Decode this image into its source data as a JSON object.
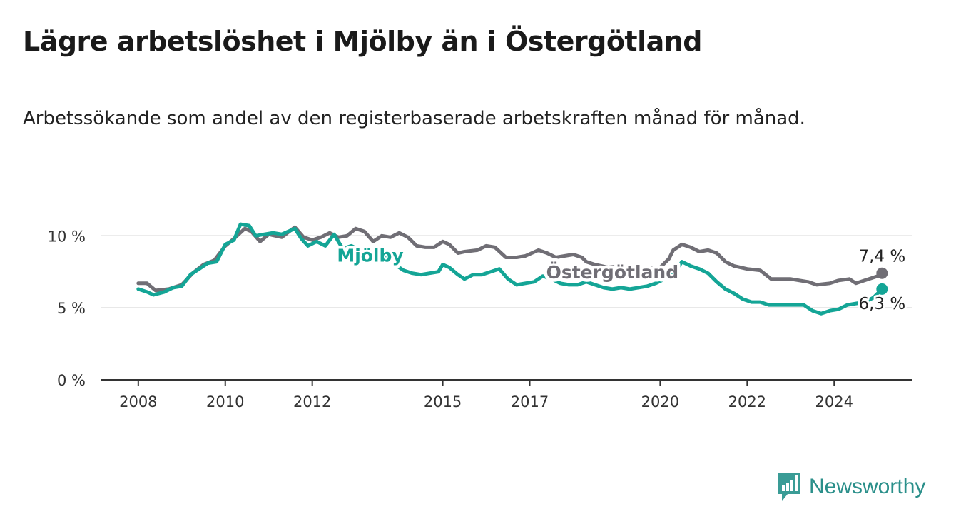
{
  "title": "Lägre arbetslöshet i Mjölby än i Östergötland",
  "subtitle": "Arbetssökande som andel av den registerbaserade arbetskraften månad för månad.",
  "brand": {
    "name": "Newsworthy",
    "icon": "newsworthy-bar-chart-icon",
    "color": "#3a9c96"
  },
  "colors": {
    "mjolby": "#14a596",
    "ostergotland": "#706e75",
    "grid": "#d9d9d9",
    "axis": "#333333"
  },
  "chart_data": {
    "type": "line",
    "y_ticks": [
      {
        "value": 10,
        "label": "10 %"
      },
      {
        "value": 5,
        "label": "5 %"
      },
      {
        "value": 0,
        "label": "0 %"
      }
    ],
    "ylim": [
      0,
      11.5
    ],
    "x_ticks": [
      {
        "value": 2008,
        "label": "2008"
      },
      {
        "value": 2010,
        "label": "2010"
      },
      {
        "value": 2012,
        "label": "2012"
      },
      {
        "value": 2015,
        "label": "2015"
      },
      {
        "value": 2017,
        "label": "2017"
      },
      {
        "value": 2020,
        "label": "2020"
      },
      {
        "value": 2022,
        "label": "2022"
      },
      {
        "value": 2024,
        "label": "2024"
      }
    ],
    "xlim": [
      2007.15,
      2025.8
    ],
    "grid": true,
    "series": [
      {
        "name": "Östergötland",
        "color": "#706e75",
        "end_label": "7,4 %",
        "points": [
          [
            2008.0,
            6.7
          ],
          [
            2008.2,
            6.7
          ],
          [
            2008.4,
            6.2
          ],
          [
            2008.7,
            6.3
          ],
          [
            2009.0,
            6.6
          ],
          [
            2009.25,
            7.4
          ],
          [
            2009.5,
            8.0
          ],
          [
            2009.75,
            8.3
          ],
          [
            2010.0,
            9.3
          ],
          [
            2010.2,
            9.8
          ],
          [
            2010.45,
            10.5
          ],
          [
            2010.6,
            10.3
          ],
          [
            2010.8,
            9.6
          ],
          [
            2011.0,
            10.1
          ],
          [
            2011.3,
            9.9
          ],
          [
            2011.6,
            10.6
          ],
          [
            2011.8,
            9.9
          ],
          [
            2012.0,
            9.7
          ],
          [
            2012.2,
            9.9
          ],
          [
            2012.4,
            10.2
          ],
          [
            2012.6,
            9.9
          ],
          [
            2012.8,
            10.0
          ],
          [
            2013.0,
            10.5
          ],
          [
            2013.2,
            10.3
          ],
          [
            2013.4,
            9.6
          ],
          [
            2013.6,
            10.0
          ],
          [
            2013.8,
            9.9
          ],
          [
            2014.0,
            10.2
          ],
          [
            2014.2,
            9.9
          ],
          [
            2014.4,
            9.3
          ],
          [
            2014.6,
            9.2
          ],
          [
            2014.8,
            9.2
          ],
          [
            2015.0,
            9.6
          ],
          [
            2015.15,
            9.4
          ],
          [
            2015.35,
            8.8
          ],
          [
            2015.5,
            8.9
          ],
          [
            2015.8,
            9.0
          ],
          [
            2016.0,
            9.3
          ],
          [
            2016.2,
            9.2
          ],
          [
            2016.45,
            8.5
          ],
          [
            2016.7,
            8.5
          ],
          [
            2016.9,
            8.6
          ],
          [
            2017.2,
            9.0
          ],
          [
            2017.4,
            8.8
          ],
          [
            2017.6,
            8.5
          ],
          [
            2017.8,
            8.6
          ],
          [
            2018.0,
            8.7
          ],
          [
            2018.2,
            8.5
          ],
          [
            2018.3,
            8.2
          ],
          [
            2018.5,
            8.0
          ],
          [
            2018.8,
            7.8
          ],
          [
            2019.1,
            7.9
          ],
          [
            2019.4,
            7.7
          ],
          [
            2019.7,
            7.8
          ],
          [
            2020.0,
            7.8
          ],
          [
            2020.2,
            8.4
          ],
          [
            2020.3,
            9.0
          ],
          [
            2020.5,
            9.4
          ],
          [
            2020.7,
            9.2
          ],
          [
            2020.9,
            8.9
          ],
          [
            2021.1,
            9.0
          ],
          [
            2021.3,
            8.8
          ],
          [
            2021.5,
            8.2
          ],
          [
            2021.7,
            7.9
          ],
          [
            2022.0,
            7.7
          ],
          [
            2022.3,
            7.6
          ],
          [
            2022.55,
            7.0
          ],
          [
            2022.8,
            7.0
          ],
          [
            2023.0,
            7.0
          ],
          [
            2023.2,
            6.9
          ],
          [
            2023.4,
            6.8
          ],
          [
            2023.6,
            6.6
          ],
          [
            2023.9,
            6.7
          ],
          [
            2024.1,
            6.9
          ],
          [
            2024.35,
            7.0
          ],
          [
            2024.5,
            6.7
          ],
          [
            2024.7,
            6.9
          ],
          [
            2025.0,
            7.2
          ],
          [
            2025.1,
            7.4
          ]
        ]
      },
      {
        "name": "Mjölby",
        "color": "#14a596",
        "end_label": "6,3 %",
        "points": [
          [
            2008.0,
            6.3
          ],
          [
            2008.2,
            6.1
          ],
          [
            2008.35,
            5.9
          ],
          [
            2008.6,
            6.1
          ],
          [
            2008.8,
            6.4
          ],
          [
            2009.0,
            6.5
          ],
          [
            2009.2,
            7.3
          ],
          [
            2009.4,
            7.7
          ],
          [
            2009.6,
            8.1
          ],
          [
            2009.8,
            8.2
          ],
          [
            2010.0,
            9.4
          ],
          [
            2010.2,
            9.7
          ],
          [
            2010.35,
            10.8
          ],
          [
            2010.55,
            10.7
          ],
          [
            2010.7,
            10.0
          ],
          [
            2010.9,
            10.1
          ],
          [
            2011.1,
            10.2
          ],
          [
            2011.3,
            10.1
          ],
          [
            2011.6,
            10.5
          ],
          [
            2011.75,
            9.8
          ],
          [
            2011.9,
            9.3
          ],
          [
            2012.1,
            9.6
          ],
          [
            2012.3,
            9.3
          ],
          [
            2012.5,
            10.1
          ],
          [
            2012.7,
            9.1
          ],
          [
            2012.9,
            9.3
          ],
          [
            2013.1,
            9.0
          ],
          [
            2013.3,
            9.2
          ],
          [
            2013.5,
            8.9
          ],
          [
            2013.7,
            8.4
          ],
          [
            2013.9,
            8.0
          ],
          [
            2014.1,
            7.6
          ],
          [
            2014.3,
            7.4
          ],
          [
            2014.5,
            7.3
          ],
          [
            2014.7,
            7.4
          ],
          [
            2014.9,
            7.5
          ],
          [
            2015.0,
            8.0
          ],
          [
            2015.15,
            7.8
          ],
          [
            2015.35,
            7.3
          ],
          [
            2015.5,
            7.0
          ],
          [
            2015.7,
            7.3
          ],
          [
            2015.9,
            7.3
          ],
          [
            2016.1,
            7.5
          ],
          [
            2016.3,
            7.7
          ],
          [
            2016.5,
            7.0
          ],
          [
            2016.7,
            6.6
          ],
          [
            2016.9,
            6.7
          ],
          [
            2017.1,
            6.8
          ],
          [
            2017.3,
            7.2
          ],
          [
            2017.5,
            7.0
          ],
          [
            2017.7,
            6.7
          ],
          [
            2017.9,
            6.6
          ],
          [
            2018.1,
            6.6
          ],
          [
            2018.3,
            6.8
          ],
          [
            2018.5,
            6.6
          ],
          [
            2018.7,
            6.4
          ],
          [
            2018.9,
            6.3
          ],
          [
            2019.1,
            6.4
          ],
          [
            2019.3,
            6.3
          ],
          [
            2019.5,
            6.4
          ],
          [
            2019.7,
            6.5
          ],
          [
            2019.9,
            6.7
          ],
          [
            2020.1,
            7.0
          ],
          [
            2020.3,
            7.3
          ],
          [
            2020.5,
            8.2
          ],
          [
            2020.7,
            7.9
          ],
          [
            2020.9,
            7.7
          ],
          [
            2021.1,
            7.4
          ],
          [
            2021.3,
            6.8
          ],
          [
            2021.5,
            6.3
          ],
          [
            2021.7,
            6.0
          ],
          [
            2021.9,
            5.6
          ],
          [
            2022.1,
            5.4
          ],
          [
            2022.3,
            5.4
          ],
          [
            2022.5,
            5.2
          ],
          [
            2022.7,
            5.2
          ],
          [
            2022.9,
            5.2
          ],
          [
            2023.1,
            5.2
          ],
          [
            2023.3,
            5.2
          ],
          [
            2023.5,
            4.8
          ],
          [
            2023.7,
            4.6
          ],
          [
            2023.9,
            4.8
          ],
          [
            2024.1,
            4.9
          ],
          [
            2024.3,
            5.2
          ],
          [
            2024.5,
            5.3
          ],
          [
            2024.7,
            5.4
          ],
          [
            2024.9,
            5.7
          ],
          [
            2025.1,
            6.3
          ]
        ]
      }
    ],
    "annotations": [
      {
        "text": "Mjölby",
        "series": "Mjölby"
      },
      {
        "text": "Östergötland",
        "series": "Östergötland"
      }
    ]
  }
}
